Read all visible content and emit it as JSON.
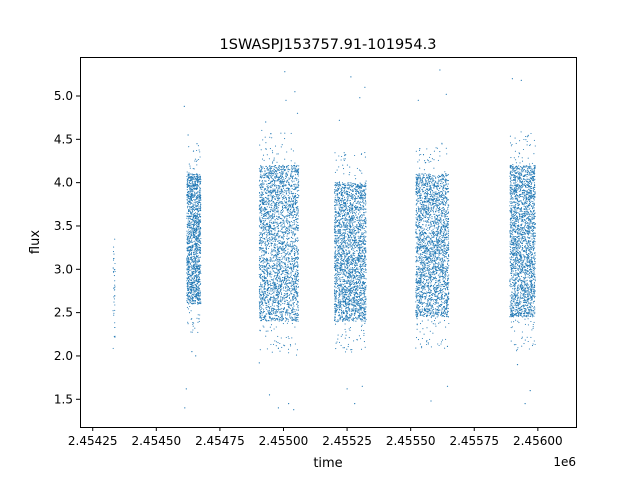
{
  "chart_data": {
    "type": "scatter",
    "title": "1SWASPJ153757.91-101954.3",
    "xlabel": "time",
    "ylabel": "flux",
    "x_offset_label": "1e6",
    "x_scale": 1000000,
    "xlim": [
      2454200,
      2456150
    ],
    "ylim": [
      1.18,
      5.45
    ],
    "x_ticks": [
      2454250,
      2454500,
      2454750,
      2455000,
      2455250,
      2455500,
      2455750,
      2456000
    ],
    "x_tick_labels": [
      "2.45425",
      "2.45450",
      "2.45475",
      "2.45500",
      "2.45525",
      "2.45550",
      "2.45575",
      "2.45600"
    ],
    "y_ticks": [
      1.5,
      2.0,
      2.5,
      3.0,
      3.5,
      4.0,
      4.5,
      5.0
    ],
    "y_tick_labels": [
      "1.5",
      "2.0",
      "2.5",
      "3.0",
      "3.5",
      "4.0",
      "4.5",
      "5.0"
    ],
    "grid": false,
    "marker_color": "#1f77b4",
    "observing_seasons": [
      {
        "x_range": [
          2454330,
          2454338
        ],
        "flux_range": [
          2.2,
          3.35
        ],
        "n_points": 40
      },
      {
        "x_range": [
          2454620,
          2454675
        ],
        "flux_range": [
          2.6,
          4.1
        ],
        "n_points": 1500
      },
      {
        "x_range": [
          2454905,
          2455060
        ],
        "flux_range": [
          2.4,
          4.2
        ],
        "n_points": 2800
      },
      {
        "x_range": [
          2455200,
          2455325
        ],
        "flux_range": [
          2.4,
          4.0
        ],
        "n_points": 2500
      },
      {
        "x_range": [
          2455520,
          2455650
        ],
        "flux_range": [
          2.45,
          4.1
        ],
        "n_points": 2500
      },
      {
        "x_range": [
          2455890,
          2455990
        ],
        "flux_range": [
          2.45,
          4.2
        ],
        "n_points": 2300
      }
    ],
    "outliers": [
      {
        "x": 2454610,
        "y": 4.88
      },
      {
        "x": 2454612,
        "y": 1.4
      },
      {
        "x": 2454625,
        "y": 4.55
      },
      {
        "x": 2454618,
        "y": 1.62
      },
      {
        "x": 2454640,
        "y": 2.05
      },
      {
        "x": 2454655,
        "y": 2.0
      },
      {
        "x": 2454660,
        "y": 4.45
      },
      {
        "x": 2454905,
        "y": 1.92
      },
      {
        "x": 2454930,
        "y": 4.7
      },
      {
        "x": 2454945,
        "y": 1.55
      },
      {
        "x": 2454980,
        "y": 1.4
      },
      {
        "x": 2455005,
        "y": 5.28
      },
      {
        "x": 2455010,
        "y": 4.95
      },
      {
        "x": 2455020,
        "y": 1.45
      },
      {
        "x": 2455040,
        "y": 1.38
      },
      {
        "x": 2455045,
        "y": 5.05
      },
      {
        "x": 2455055,
        "y": 4.8
      },
      {
        "x": 2455220,
        "y": 4.72
      },
      {
        "x": 2455250,
        "y": 1.62
      },
      {
        "x": 2455265,
        "y": 5.22
      },
      {
        "x": 2455280,
        "y": 1.45
      },
      {
        "x": 2455300,
        "y": 4.98
      },
      {
        "x": 2455310,
        "y": 1.65
      },
      {
        "x": 2455320,
        "y": 5.1
      },
      {
        "x": 2455530,
        "y": 4.95
      },
      {
        "x": 2455580,
        "y": 1.48
      },
      {
        "x": 2455615,
        "y": 5.3
      },
      {
        "x": 2455640,
        "y": 5.02
      },
      {
        "x": 2455645,
        "y": 1.65
      },
      {
        "x": 2455900,
        "y": 5.2
      },
      {
        "x": 2455920,
        "y": 1.9
      },
      {
        "x": 2455935,
        "y": 5.18
      },
      {
        "x": 2455950,
        "y": 1.45
      },
      {
        "x": 2455970,
        "y": 1.6
      }
    ]
  }
}
